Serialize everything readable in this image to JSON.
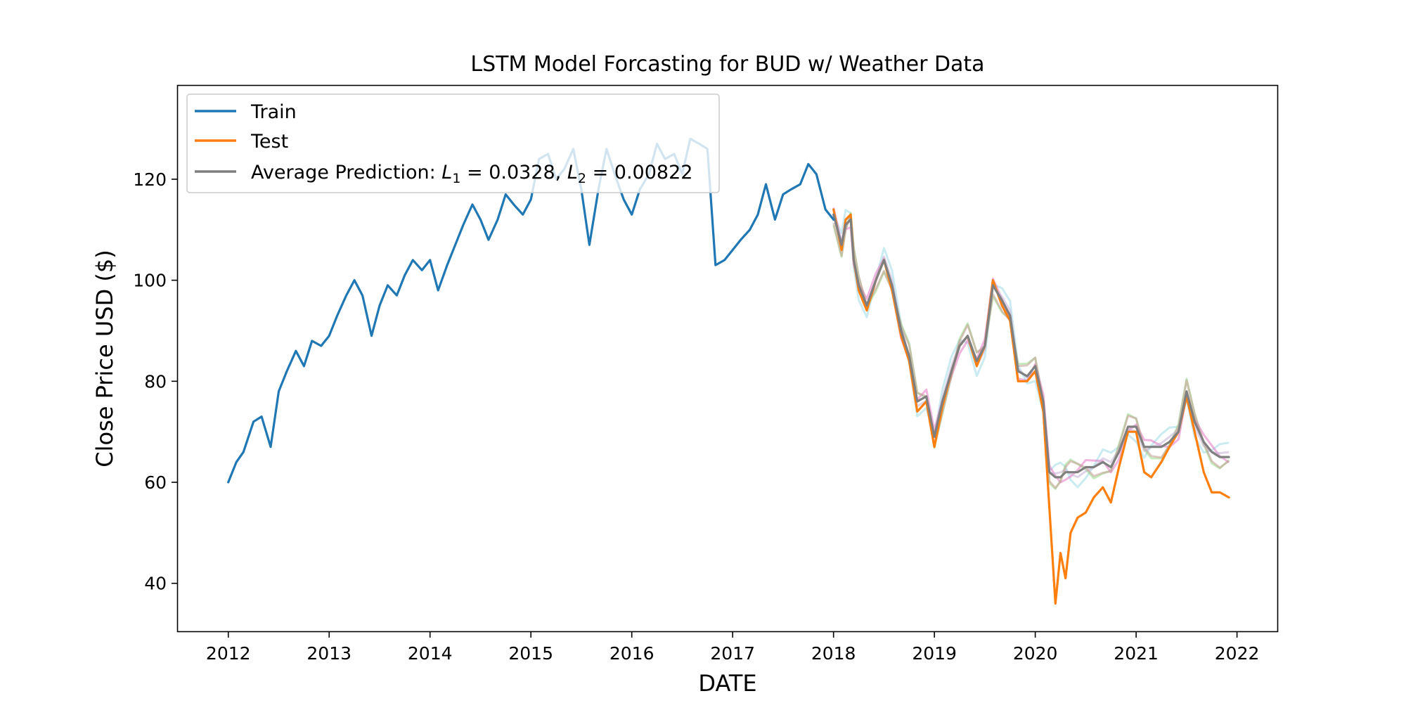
{
  "chart_data": {
    "type": "line",
    "title": "LSTM Model Forcasting for BUD w/ Weather Data",
    "xlabel": "DATE",
    "ylabel": "Close Price USD ($)",
    "xlim": [
      2011.5,
      2022.4
    ],
    "ylim": [
      30.5,
      138.5
    ],
    "x_ticks": [
      2012,
      2013,
      2014,
      2015,
      2016,
      2017,
      2018,
      2019,
      2020,
      2021,
      2022
    ],
    "x_tick_labels": [
      "2012",
      "2013",
      "2014",
      "2015",
      "2016",
      "2017",
      "2018",
      "2019",
      "2020",
      "2021",
      "2022"
    ],
    "y_ticks": [
      40,
      60,
      80,
      100,
      120
    ],
    "y_tick_labels": [
      "40",
      "60",
      "80",
      "100",
      "120"
    ],
    "grid": false,
    "legend_position": "top-left",
    "legend": {
      "train": "Train",
      "test": "Test",
      "avg_prefix": "Average Prediction: ",
      "avg_l1_sym": "L",
      "avg_l1_sub": "1",
      "avg_l1_val": " = 0.0328, ",
      "avg_l2_sym": "L",
      "avg_l2_sub": "2",
      "avg_l2_val": " = 0.00822"
    },
    "series": [
      {
        "key": "train",
        "color": "#1f77b4",
        "x": [
          2012.0,
          2012.08,
          2012.15,
          2012.25,
          2012.33,
          2012.42,
          2012.5,
          2012.58,
          2012.67,
          2012.75,
          2012.83,
          2012.92,
          2013.0,
          2013.08,
          2013.17,
          2013.25,
          2013.33,
          2013.42,
          2013.5,
          2013.58,
          2013.67,
          2013.75,
          2013.83,
          2013.92,
          2014.0,
          2014.08,
          2014.17,
          2014.25,
          2014.33,
          2014.42,
          2014.5,
          2014.58,
          2014.67,
          2014.75,
          2014.83,
          2014.92,
          2015.0,
          2015.08,
          2015.17,
          2015.25,
          2015.33,
          2015.42,
          2015.5,
          2015.58,
          2015.67,
          2015.75,
          2015.83,
          2015.92,
          2016.0,
          2016.08,
          2016.17,
          2016.25,
          2016.33,
          2016.42,
          2016.5,
          2016.58,
          2016.67,
          2016.75,
          2016.83,
          2016.92,
          2017.0,
          2017.08,
          2017.17,
          2017.25,
          2017.33,
          2017.42,
          2017.5,
          2017.58,
          2017.67,
          2017.75,
          2017.83,
          2017.92,
          2018.0
        ],
        "y": [
          60,
          64,
          66,
          72,
          73,
          67,
          78,
          82,
          86,
          83,
          88,
          87,
          89,
          93,
          97,
          100,
          97,
          89,
          95,
          99,
          97,
          101,
          104,
          102,
          104,
          98,
          103,
          107,
          111,
          115,
          112,
          108,
          112,
          117,
          115,
          113,
          116,
          124,
          125,
          120,
          122,
          126,
          118,
          107,
          118,
          126,
          121,
          116,
          113,
          118,
          121,
          127,
          124,
          125,
          121,
          128,
          127,
          126,
          103,
          104,
          106,
          108,
          110,
          113,
          119,
          112,
          117,
          118,
          119,
          123,
          121,
          114,
          112
        ]
      },
      {
        "key": "test",
        "color": "#ff7f0e",
        "x": [
          2018.0,
          2018.08,
          2018.12,
          2018.17,
          2018.2,
          2018.25,
          2018.33,
          2018.42,
          2018.5,
          2018.58,
          2018.67,
          2018.75,
          2018.83,
          2018.92,
          2019.0,
          2019.08,
          2019.17,
          2019.25,
          2019.33,
          2019.42,
          2019.5,
          2019.58,
          2019.67,
          2019.75,
          2019.83,
          2019.92,
          2020.0,
          2020.08,
          2020.14,
          2020.2,
          2020.25,
          2020.3,
          2020.35,
          2020.42,
          2020.5,
          2020.58,
          2020.67,
          2020.75,
          2020.83,
          2020.92,
          2021.0,
          2021.08,
          2021.15,
          2021.25,
          2021.33,
          2021.42,
          2021.5,
          2021.58,
          2021.67,
          2021.75,
          2021.83,
          2021.92
        ],
        "y": [
          114,
          106,
          112,
          113,
          104,
          98,
          94,
          100,
          104,
          98,
          89,
          84,
          74,
          76,
          67,
          75,
          82,
          87,
          89,
          83,
          87,
          100,
          95,
          92,
          80,
          80,
          82,
          74,
          55,
          36,
          46,
          41,
          50,
          53,
          54,
          57,
          59,
          56,
          63,
          70,
          70,
          62,
          61,
          64,
          67,
          70,
          77,
          70,
          62,
          58,
          58,
          57
        ]
      },
      {
        "key": "average_prediction",
        "color": "#7f7f7f",
        "x": [
          2018.0,
          2018.08,
          2018.12,
          2018.17,
          2018.2,
          2018.25,
          2018.33,
          2018.42,
          2018.5,
          2018.58,
          2018.67,
          2018.75,
          2018.83,
          2018.92,
          2019.0,
          2019.08,
          2019.17,
          2019.25,
          2019.33,
          2019.42,
          2019.5,
          2019.58,
          2019.67,
          2019.75,
          2019.83,
          2019.92,
          2020.0,
          2020.08,
          2020.14,
          2020.2,
          2020.25,
          2020.3,
          2020.35,
          2020.42,
          2020.5,
          2020.58,
          2020.67,
          2020.75,
          2020.83,
          2020.92,
          2021.0,
          2021.08,
          2021.15,
          2021.25,
          2021.33,
          2021.42,
          2021.5,
          2021.58,
          2021.67,
          2021.75,
          2021.83,
          2021.92
        ],
        "y": [
          113,
          107,
          111,
          112,
          104,
          99,
          95,
          100,
          104,
          99,
          90,
          85,
          76,
          77,
          69,
          76,
          82,
          87,
          89,
          84,
          87,
          99,
          96,
          93,
          82,
          81,
          83,
          76,
          62,
          61,
          61,
          62,
          62,
          62,
          63,
          63,
          64,
          63,
          66,
          71,
          71,
          67,
          67,
          67,
          68,
          70,
          78,
          72,
          68,
          66,
          65,
          65
        ]
      }
    ],
    "faint_series_colors": [
      "#9edae5",
      "#98df8a",
      "#e377c2",
      "#c5b0d5",
      "#c49c94"
    ]
  }
}
